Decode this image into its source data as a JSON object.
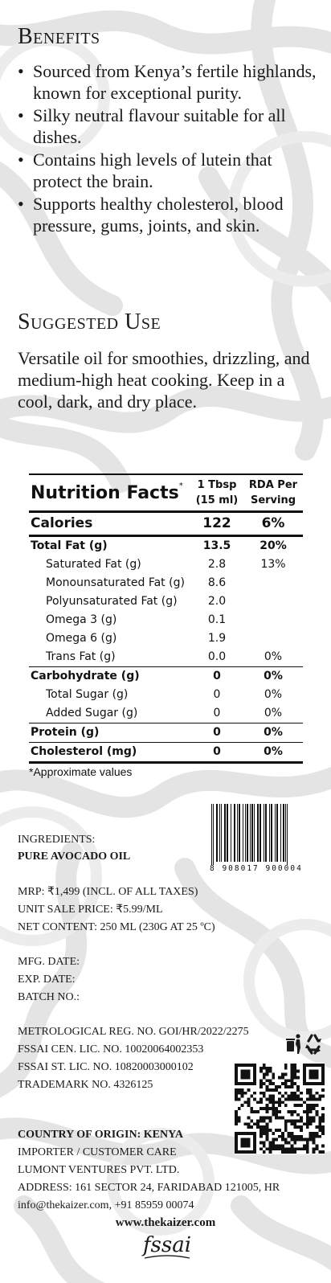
{
  "benefits": {
    "title": "Benefits",
    "items": [
      "Sourced from Kenya’s fertile highlands, known for exceptional purity.",
      "Silky neutral flavour suitable for all dishes.",
      "Contains high levels of lutein that protect the brain.",
      "Supports healthy cholesterol, blood pressure, gums, joints, and skin."
    ]
  },
  "suggested_use": {
    "title": "Suggested Use",
    "body": "Versatile oil for smoothies, drizzling, and medium-high heat cooking. Keep in a cool, dark, and dry place."
  },
  "nutrition": {
    "title": "Nutrition Facts",
    "title_mark": "*",
    "col1": [
      "1 Tbsp",
      "(15 ml)"
    ],
    "col2": [
      "RDA Per",
      "Serving"
    ],
    "calories": {
      "label": "Calories",
      "amount": "122",
      "rda": "6%"
    },
    "rows": [
      {
        "label": "Total Fat (g)",
        "amount": "13.5",
        "rda": "20%"
      },
      {
        "label": "Saturated Fat (g)",
        "amount": "2.8",
        "rda": "13%"
      },
      {
        "label": "Monounsaturated Fat (g)",
        "amount": "8.6",
        "rda": ""
      },
      {
        "label": "Polyunsaturated Fat (g)",
        "amount": "2.0",
        "rda": ""
      },
      {
        "label": "Omega 3 (g)",
        "amount": "0.1",
        "rda": ""
      },
      {
        "label": "Omega 6 (g)",
        "amount": "1.9",
        "rda": ""
      },
      {
        "label": "Trans Fat (g)",
        "amount": "0.0",
        "rda": "0%"
      },
      {
        "label": "Carbohydrate (g)",
        "amount": "0",
        "rda": "0%"
      },
      {
        "label": "Total Sugar (g)",
        "amount": "0",
        "rda": "0%"
      },
      {
        "label": "Added Sugar (g)",
        "amount": "0",
        "rda": "0%"
      },
      {
        "label": "Protein (g)",
        "amount": "0",
        "rda": "0%"
      },
      {
        "label": "Cholesterol (mg)",
        "amount": "0",
        "rda": "0%"
      }
    ],
    "note": "*Approximate values"
  },
  "barcode": {
    "number": "8 908017 900004"
  },
  "ingredients": {
    "label": "INGREDIENTS:",
    "value": "PURE AVOCADO OIL"
  },
  "pricing": {
    "mrp": "MRP: ₹1,499 (INCL. OF ALL TAXES)",
    "unit_price": "UNIT SALE PRICE: ₹5.99/ML",
    "net_content": "NET CONTENT: 250 ML (230G AT 25 ºC)"
  },
  "dates": {
    "mfg": "MFG. DATE:",
    "exp": "EXP. DATE:",
    "batch": "BATCH NO.:"
  },
  "licenses": {
    "metrological": "METROLOGICAL REG. NO. GOI/HR/2022/2275",
    "fssai_cen": "FSSAI CEN. LIC. NO. 10020064002353",
    "fssai_st": "FSSAI ST. LIC. NO. 10820003000102",
    "trademark": "TRADEMARK NO. 4326125"
  },
  "origin": {
    "country": "COUNTRY OF ORIGIN: KENYA",
    "importer_label": "IMPORTER / CUSTOMER CARE",
    "company": "LUMONT VENTURES PVT. LTD.",
    "address": "ADDRESS: 161 SECTOR 24, FARIDABAD 121005, HR",
    "contact": "info@thekaizer.com, +91 85959 00074"
  },
  "website": "www.thekaizer.com",
  "fssai_logo": "fssai",
  "icons": {
    "recycle": "recycle-icon",
    "disposal": "disposal-icon",
    "qr": "qr-code"
  }
}
